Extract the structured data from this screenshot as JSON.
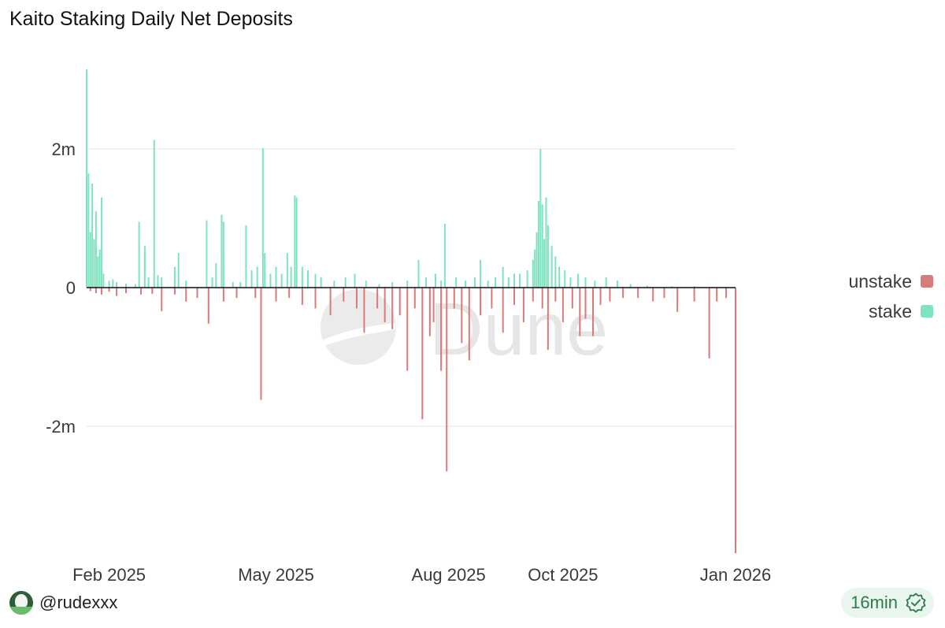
{
  "title": "Kaito Staking Daily Net Deposits",
  "watermark": "Dune",
  "footer": {
    "user": "@rudexxx",
    "freshness": "16min"
  },
  "colors": {
    "stake": "#7fe3bf",
    "unstake": "#d97b78",
    "grid": "#e6e6e6",
    "zero_line": "#111111"
  },
  "icons": {
    "avatar": "avatar-icon",
    "verified": "verified-check-icon"
  },
  "chart_data": {
    "type": "bar",
    "stacked": true,
    "title": "Kaito Staking Daily Net Deposits",
    "xlabel": "",
    "ylabel": "",
    "x_range": [
      "2025-01-20",
      "2026-01-01"
    ],
    "x_ticks": [
      {
        "date": "2025-02-01",
        "label": "Feb 2025"
      },
      {
        "date": "2025-05-01",
        "label": "May 2025"
      },
      {
        "date": "2025-08-01",
        "label": "Aug 2025"
      },
      {
        "date": "2025-10-01",
        "label": "Oct 2025"
      },
      {
        "date": "2026-01-01",
        "label": "Jan 2026"
      }
    ],
    "y_ticks": [
      {
        "value": 2000000,
        "label": "2m"
      },
      {
        "value": 0,
        "label": "0"
      },
      {
        "value": -2000000,
        "label": "-2m"
      }
    ],
    "ylim": [
      -3900000,
      3200000
    ],
    "grid": true,
    "legend_position": "right",
    "series": [
      {
        "name": "stake",
        "color": "#7fe3bf",
        "points": [
          [
            "2025-01-20",
            3150000
          ],
          [
            "2025-01-21",
            1650000
          ],
          [
            "2025-01-22",
            800000
          ],
          [
            "2025-01-23",
            1500000
          ],
          [
            "2025-01-24",
            700000
          ],
          [
            "2025-01-25",
            1100000
          ],
          [
            "2025-01-26",
            450000
          ],
          [
            "2025-01-27",
            550000
          ],
          [
            "2025-01-28",
            1300000
          ],
          [
            "2025-01-29",
            200000
          ],
          [
            "2025-02-01",
            100000
          ],
          [
            "2025-02-03",
            120000
          ],
          [
            "2025-02-05",
            80000
          ],
          [
            "2025-02-10",
            60000
          ],
          [
            "2025-02-15",
            50000
          ],
          [
            "2025-02-17",
            950000
          ],
          [
            "2025-02-20",
            600000
          ],
          [
            "2025-02-22",
            150000
          ],
          [
            "2025-02-25",
            2130000
          ],
          [
            "2025-02-27",
            180000
          ],
          [
            "2025-03-01",
            150000
          ],
          [
            "2025-03-08",
            300000
          ],
          [
            "2025-03-10",
            500000
          ],
          [
            "2025-03-14",
            100000
          ],
          [
            "2025-03-25",
            970000
          ],
          [
            "2025-03-28",
            150000
          ],
          [
            "2025-03-30",
            350000
          ],
          [
            "2025-04-02",
            1050000
          ],
          [
            "2025-04-03",
            950000
          ],
          [
            "2025-04-08",
            80000
          ],
          [
            "2025-04-12",
            80000
          ],
          [
            "2025-04-15",
            900000
          ],
          [
            "2025-04-18",
            250000
          ],
          [
            "2025-04-21",
            300000
          ],
          [
            "2025-04-24",
            2010000
          ],
          [
            "2025-04-25",
            500000
          ],
          [
            "2025-04-28",
            200000
          ],
          [
            "2025-05-01",
            300000
          ],
          [
            "2025-05-04",
            200000
          ],
          [
            "2025-05-07",
            500000
          ],
          [
            "2025-05-09",
            300000
          ],
          [
            "2025-05-11",
            1330000
          ],
          [
            "2025-05-12",
            1300000
          ],
          [
            "2025-05-15",
            300000
          ],
          [
            "2025-05-18",
            250000
          ],
          [
            "2025-05-22",
            200000
          ],
          [
            "2025-05-25",
            150000
          ],
          [
            "2025-06-01",
            100000
          ],
          [
            "2025-06-07",
            150000
          ],
          [
            "2025-06-12",
            200000
          ],
          [
            "2025-06-18",
            100000
          ],
          [
            "2025-06-25",
            50000
          ],
          [
            "2025-07-02",
            80000
          ],
          [
            "2025-07-10",
            100000
          ],
          [
            "2025-07-16",
            400000
          ],
          [
            "2025-07-20",
            150000
          ],
          [
            "2025-07-25",
            200000
          ],
          [
            "2025-07-28",
            100000
          ],
          [
            "2025-07-30",
            920000
          ],
          [
            "2025-08-05",
            150000
          ],
          [
            "2025-08-10",
            100000
          ],
          [
            "2025-08-15",
            150000
          ],
          [
            "2025-08-18",
            400000
          ],
          [
            "2025-08-22",
            100000
          ],
          [
            "2025-08-26",
            150000
          ],
          [
            "2025-08-30",
            300000
          ],
          [
            "2025-09-02",
            150000
          ],
          [
            "2025-09-05",
            200000
          ],
          [
            "2025-09-08",
            200000
          ],
          [
            "2025-09-12",
            250000
          ],
          [
            "2025-09-15",
            400000
          ],
          [
            "2025-09-16",
            550000
          ],
          [
            "2025-09-17",
            800000
          ],
          [
            "2025-09-18",
            1250000
          ],
          [
            "2025-09-19",
            2000000
          ],
          [
            "2025-09-20",
            1200000
          ],
          [
            "2025-09-21",
            700000
          ],
          [
            "2025-09-22",
            1300000
          ],
          [
            "2025-09-23",
            900000
          ],
          [
            "2025-09-25",
            600000
          ],
          [
            "2025-09-27",
            450000
          ],
          [
            "2025-09-29",
            300000
          ],
          [
            "2025-10-02",
            250000
          ],
          [
            "2025-10-05",
            150000
          ],
          [
            "2025-10-09",
            200000
          ],
          [
            "2025-10-13",
            150000
          ],
          [
            "2025-10-18",
            100000
          ],
          [
            "2025-10-24",
            150000
          ],
          [
            "2025-10-30",
            100000
          ],
          [
            "2025-11-06",
            50000
          ],
          [
            "2025-11-15",
            30000
          ],
          [
            "2025-11-28",
            20000
          ],
          [
            "2025-12-10",
            20000
          ],
          [
            "2025-12-20",
            10000
          ]
        ]
      },
      {
        "name": "unstake",
        "color": "#d97b78",
        "points": [
          [
            "2025-01-22",
            -50000
          ],
          [
            "2025-01-25",
            -80000
          ],
          [
            "2025-01-28",
            -100000
          ],
          [
            "2025-02-01",
            -60000
          ],
          [
            "2025-02-05",
            -120000
          ],
          [
            "2025-02-10",
            -80000
          ],
          [
            "2025-02-18",
            -100000
          ],
          [
            "2025-02-24",
            -90000
          ],
          [
            "2025-03-01",
            -340000
          ],
          [
            "2025-03-08",
            -100000
          ],
          [
            "2025-03-14",
            -200000
          ],
          [
            "2025-03-20",
            -150000
          ],
          [
            "2025-03-26",
            -520000
          ],
          [
            "2025-04-03",
            -200000
          ],
          [
            "2025-04-10",
            -150000
          ],
          [
            "2025-04-20",
            -150000
          ],
          [
            "2025-04-23",
            -1620000
          ],
          [
            "2025-05-01",
            -200000
          ],
          [
            "2025-05-08",
            -150000
          ],
          [
            "2025-05-15",
            -250000
          ],
          [
            "2025-05-22",
            -300000
          ],
          [
            "2025-05-30",
            -400000
          ],
          [
            "2025-06-06",
            -200000
          ],
          [
            "2025-06-13",
            -300000
          ],
          [
            "2025-06-17",
            -650000
          ],
          [
            "2025-06-24",
            -300000
          ],
          [
            "2025-06-28",
            -500000
          ],
          [
            "2025-07-02",
            -600000
          ],
          [
            "2025-07-06",
            -400000
          ],
          [
            "2025-07-10",
            -1200000
          ],
          [
            "2025-07-14",
            -300000
          ],
          [
            "2025-07-18",
            -1900000
          ],
          [
            "2025-07-22",
            -700000
          ],
          [
            "2025-07-24",
            -500000
          ],
          [
            "2025-07-28",
            -1200000
          ],
          [
            "2025-07-31",
            -2650000
          ],
          [
            "2025-08-04",
            -300000
          ],
          [
            "2025-08-08",
            -800000
          ],
          [
            "2025-08-12",
            -1050000
          ],
          [
            "2025-08-18",
            -400000
          ],
          [
            "2025-08-24",
            -300000
          ],
          [
            "2025-08-30",
            -650000
          ],
          [
            "2025-09-05",
            -250000
          ],
          [
            "2025-09-10",
            -500000
          ],
          [
            "2025-09-15",
            -200000
          ],
          [
            "2025-09-20",
            -300000
          ],
          [
            "2025-09-23",
            -900000
          ],
          [
            "2025-09-27",
            -200000
          ],
          [
            "2025-10-01",
            -500000
          ],
          [
            "2025-10-06",
            -300000
          ],
          [
            "2025-10-10",
            -700000
          ],
          [
            "2025-10-13",
            -450000
          ],
          [
            "2025-10-17",
            -700000
          ],
          [
            "2025-10-21",
            -250000
          ],
          [
            "2025-10-26",
            -200000
          ],
          [
            "2025-11-02",
            -150000
          ],
          [
            "2025-11-10",
            -150000
          ],
          [
            "2025-11-18",
            -200000
          ],
          [
            "2025-11-24",
            -150000
          ],
          [
            "2025-12-01",
            -350000
          ],
          [
            "2025-12-10",
            -200000
          ],
          [
            "2025-12-18",
            -1020000
          ],
          [
            "2025-12-22",
            -200000
          ],
          [
            "2025-12-27",
            -150000
          ],
          [
            "2026-01-01",
            -3830000
          ]
        ]
      }
    ]
  }
}
